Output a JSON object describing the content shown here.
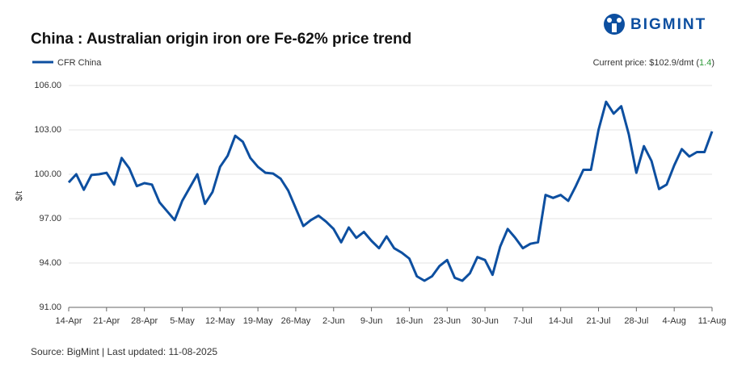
{
  "brand": "BIGMINT",
  "source": "Source: BigMint | Last updated: 11-08-2025",
  "current_price": {
    "prefix": "Current price: $102.9/dmt (",
    "change": "1.4",
    "suffix": ")"
  },
  "chart_data": {
    "type": "line",
    "title": "China : Australian origin iron ore Fe-62% price trend",
    "ylabel": "$/t",
    "categories": [
      "14-Apr",
      null,
      null,
      null,
      null,
      "21-Apr",
      null,
      null,
      null,
      null,
      "28-Apr",
      null,
      null,
      null,
      null,
      "5-May",
      null,
      null,
      null,
      null,
      "12-May",
      null,
      null,
      null,
      null,
      "19-May",
      null,
      null,
      null,
      null,
      "26-May",
      null,
      null,
      null,
      null,
      "2-Jun",
      null,
      null,
      null,
      null,
      "9-Jun",
      null,
      null,
      null,
      null,
      "16-Jun",
      null,
      null,
      null,
      null,
      "23-Jun",
      null,
      null,
      null,
      null,
      "30-Jun",
      null,
      null,
      null,
      null,
      "7-Jul",
      null,
      null,
      null,
      null,
      "14-Jul",
      null,
      null,
      null,
      null,
      "21-Jul",
      null,
      null,
      null,
      null,
      "28-Jul",
      null,
      null,
      null,
      null,
      "4-Aug",
      null,
      null,
      null,
      null,
      "11-Aug"
    ],
    "series": [
      {
        "name": "CFR China",
        "color": "#0d4fa0",
        "values": [
          99.45,
          100.0,
          98.95,
          99.95,
          100.0,
          100.1,
          99.3,
          101.1,
          100.4,
          99.2,
          99.4,
          99.3,
          98.1,
          97.5,
          96.9,
          98.2,
          99.1,
          100.0,
          98.0,
          98.8,
          100.5,
          101.25,
          102.6,
          102.2,
          101.1,
          100.5,
          100.1,
          100.05,
          99.7,
          98.9,
          97.7,
          96.5,
          96.9,
          97.2,
          96.8,
          96.3,
          95.4,
          96.4,
          95.7,
          96.1,
          95.5,
          95.0,
          95.8,
          95.0,
          94.7,
          94.3,
          93.1,
          92.8,
          93.1,
          93.8,
          94.2,
          93.0,
          92.8,
          93.3,
          94.4,
          94.2,
          93.2,
          95.1,
          96.3,
          95.7,
          95.0,
          95.3,
          95.4,
          98.6,
          98.4,
          98.6,
          98.2,
          99.2,
          100.3,
          100.3,
          103.0,
          104.9,
          104.1,
          104.6,
          102.7,
          100.1,
          101.9,
          100.9,
          99.0,
          99.3,
          100.6,
          101.7,
          101.2,
          101.5,
          101.5,
          102.9
        ]
      }
    ],
    "ylim": [
      91,
      106
    ],
    "yticks": [
      {
        "value": 91,
        "label": "91.00"
      },
      {
        "value": 94,
        "label": "94.00"
      },
      {
        "value": 97,
        "label": "97.00"
      },
      {
        "value": 100,
        "label": "100.00"
      },
      {
        "value": 103,
        "label": "103.00"
      },
      {
        "value": 106,
        "label": "106.00"
      }
    ],
    "grid": true,
    "legend": "top-left"
  }
}
